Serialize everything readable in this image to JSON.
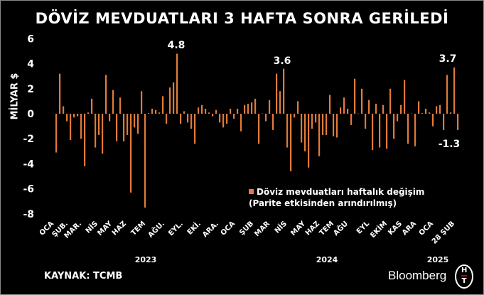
{
  "chart_data": {
    "type": "bar",
    "title": "DÖVİZ MEVDUATLARI 3 HAFTA SONRA GERİLEDİ",
    "ylabel": "MİLYAR $",
    "ylim": [
      -8,
      6
    ],
    "yticks": [
      6,
      4,
      2,
      0,
      -2,
      -4,
      -6,
      -8
    ],
    "grid": false,
    "color": "#e07b39",
    "legend": {
      "position": "bottom-right",
      "lines": [
        "Döviz mevduatları haftalık değişim",
        "(Parite etkisinden arındırılmış)"
      ]
    },
    "month_labels": [
      "OCA",
      "ŞUB.",
      "MAR.",
      "NİS",
      "MAY",
      "HAZ",
      "TEM",
      "AĞU.",
      "EYL.",
      "EKİ.",
      "ARA.",
      "OCA",
      "ŞUB",
      "MAR",
      "NİS",
      "MAY",
      "HAZ",
      "TEM",
      "AĞU",
      "EYL",
      "EKİM",
      "KAS",
      "ARA",
      "OCA",
      "28 ŞUB"
    ],
    "year_labels": [
      "2023",
      "2024",
      "2025"
    ],
    "annotations": [
      "4.8",
      "3.6",
      "3.7",
      "-1.3"
    ],
    "values": [
      -3.1,
      3.2,
      0.6,
      -0.6,
      -2.1,
      -0.3,
      -0.2,
      -2.0,
      -4.2,
      0.1,
      1.2,
      -2.7,
      -1.7,
      -3.2,
      3.1,
      -0.6,
      1.9,
      -2.2,
      1.3,
      -2.2,
      -1.7,
      -6.3,
      -1.1,
      -1.6,
      1.8,
      -7.5,
      0.05,
      0.4,
      0.3,
      0.1,
      1.4,
      -0.8,
      2.1,
      2.5,
      4.8,
      -0.8,
      0.2,
      -0.7,
      -1.2,
      -2.4,
      0.5,
      0.7,
      0.4,
      0.1,
      -0.2,
      0.3,
      -0.7,
      -1.1,
      -0.8,
      0.4,
      -0.4,
      0.4,
      -1.4,
      0.7,
      0.8,
      0.9,
      1.2,
      -2.4,
      0.02,
      -0.6,
      1.1,
      -1.3,
      3.2,
      1.8,
      3.6,
      -2.7,
      -4.6,
      -0.3,
      1.0,
      -2.3,
      -3.0,
      -4.3,
      -1.2,
      -0.7,
      -3.4,
      -1.7,
      -1.7,
      1.5,
      -1.8,
      -1.9,
      0.5,
      1.3,
      0.4,
      -0.9,
      2.8,
      0.02,
      2.0,
      -1.2,
      1.1,
      -2.9,
      0.8,
      -2.7,
      0.7,
      -2.8,
      2.0,
      -2.0,
      -0.6,
      0.7,
      2.7,
      -2.4,
      0.02,
      -2.6,
      1.0,
      0.05,
      0.4,
      0.1,
      -1.0,
      0.6,
      0.7,
      -1.3,
      3.1,
      0.1,
      3.7,
      -1.3
    ]
  },
  "footer": {
    "source": "KAYNAK: TCMB",
    "brand": "Bloomberg",
    "logo_text": "HT"
  }
}
